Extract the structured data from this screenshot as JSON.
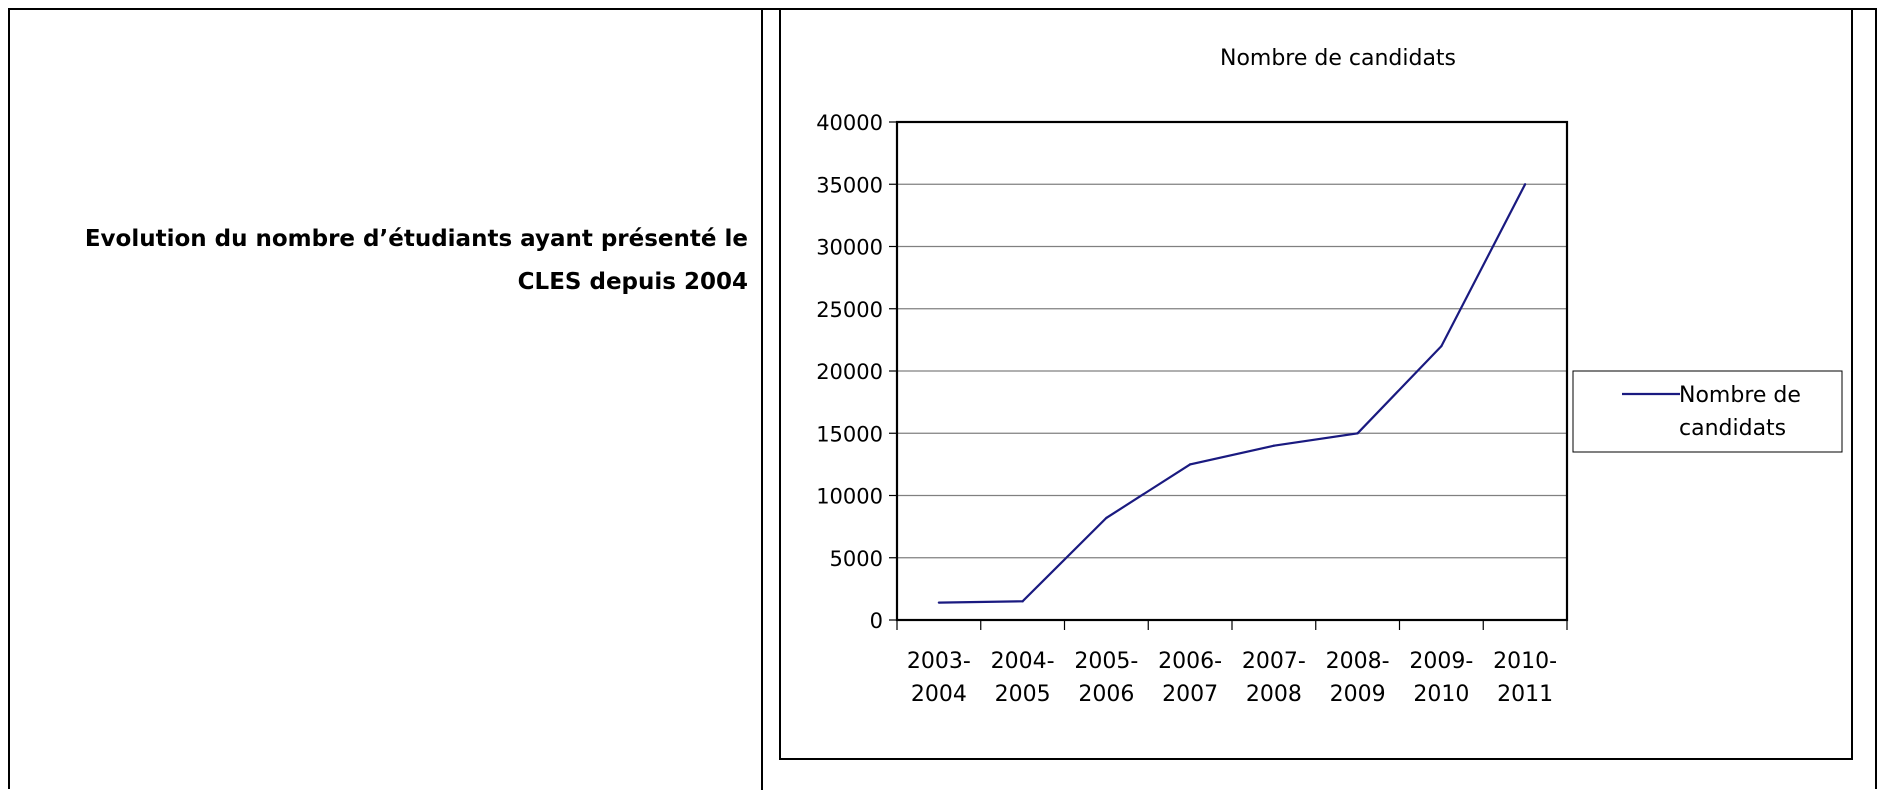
{
  "caption": {
    "line1": "Evolution du nombre d’étudiants ayant présenté le",
    "line2": "CLES depuis 2004"
  },
  "chart_data": {
    "type": "line",
    "title": "Nombre de candidats",
    "xlabel": "",
    "ylabel": "",
    "categories": [
      [
        "2003-",
        "2004"
      ],
      [
        "2004-",
        "2005"
      ],
      [
        "2005-",
        "2006"
      ],
      [
        "2006-",
        "2007"
      ],
      [
        "2007-",
        "2008"
      ],
      [
        "2008-",
        "2009"
      ],
      [
        "2009-",
        "2010"
      ],
      [
        "2010-",
        "2011"
      ]
    ],
    "series": [
      {
        "name": "Nombre de candidats",
        "legend_lines": [
          "Nombre de",
          "candidats"
        ],
        "values": [
          1400,
          1500,
          8200,
          12500,
          14000,
          15000,
          22000,
          35000
        ]
      }
    ],
    "yticks": [
      "0",
      "5000",
      "10000",
      "15000",
      "20000",
      "25000",
      "30000",
      "35000",
      "40000"
    ],
    "ylim": [
      0,
      40000
    ],
    "grid": true,
    "legend": "right",
    "colors": {
      "line": "#1a1a80",
      "grid": "#808080",
      "axis": "#000000"
    }
  }
}
